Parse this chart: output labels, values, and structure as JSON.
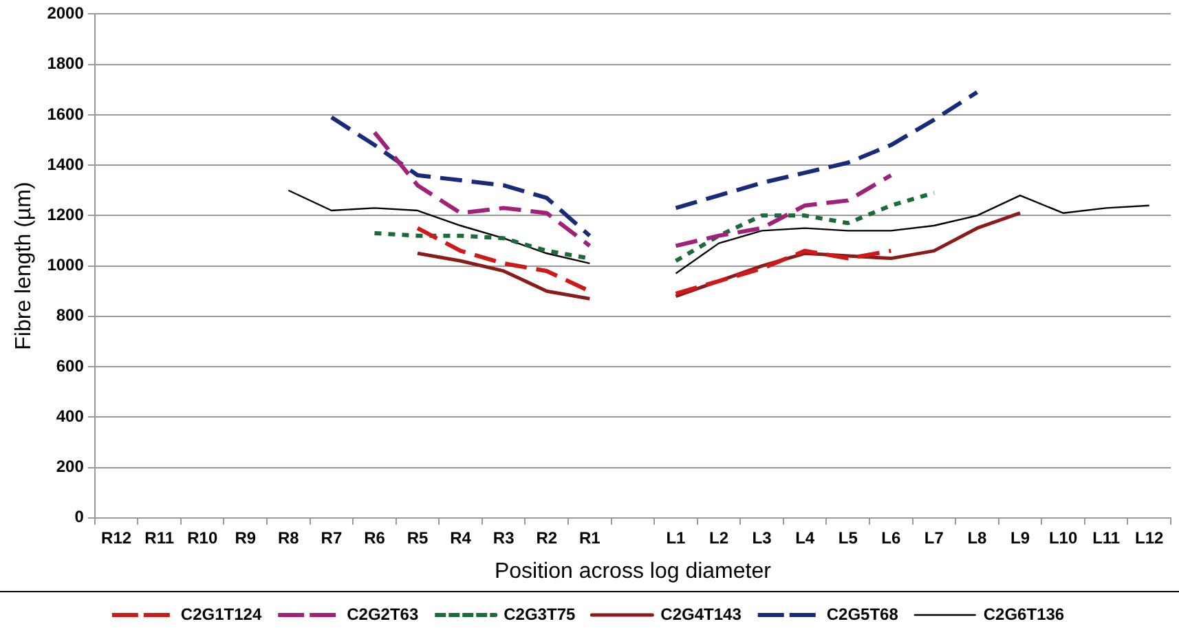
{
  "chart_data": {
    "type": "line",
    "xlabel": "Position across log diameter",
    "ylabel": "Fibre length (µm)",
    "categories": [
      "R12",
      "R11",
      "R10",
      "R9",
      "R8",
      "R7",
      "R6",
      "R5",
      "R4",
      "R3",
      "R2",
      "R1",
      null,
      "L1",
      "L2",
      "L3",
      "L4",
      "L5",
      "L6",
      "L7",
      "L8",
      "L9",
      "L10",
      "L11",
      "L12"
    ],
    "ylim": [
      0,
      2000
    ],
    "yticks": [
      0,
      200,
      400,
      600,
      800,
      1000,
      1200,
      1400,
      1600,
      1800,
      2000
    ],
    "grid": "y",
    "legend": "bottom",
    "marker": "none",
    "series": [
      {
        "name": "C2G1T124",
        "color": "#d01818",
        "line_style": "dashed",
        "values": [
          null,
          null,
          null,
          null,
          null,
          null,
          null,
          1150,
          1060,
          1010,
          980,
          900,
          null,
          890,
          940,
          990,
          1060,
          1030,
          1060,
          null,
          null,
          null,
          null,
          null,
          null
        ]
      },
      {
        "name": "C2G2T63",
        "color": "#a0207a",
        "line_style": "dashed",
        "values": [
          null,
          null,
          null,
          null,
          null,
          null,
          1530,
          1320,
          1210,
          1230,
          1210,
          1080,
          null,
          1080,
          1120,
          1150,
          1240,
          1260,
          1360,
          null,
          null,
          null,
          null,
          null,
          null
        ]
      },
      {
        "name": "C2G3T75",
        "color": "#1a6a3a",
        "line_style": "dotted",
        "values": [
          null,
          null,
          null,
          null,
          null,
          null,
          1130,
          1120,
          1120,
          1110,
          1060,
          1030,
          null,
          1020,
          1120,
          1200,
          1200,
          1170,
          1240,
          1290,
          null,
          null,
          null,
          null,
          null
        ]
      },
      {
        "name": "C2G4T143",
        "color": "#8b1a1a",
        "line_style": "solid",
        "values": [
          null,
          null,
          null,
          null,
          null,
          null,
          null,
          1050,
          1020,
          980,
          900,
          870,
          null,
          880,
          940,
          1000,
          1050,
          1040,
          1030,
          1060,
          1150,
          1210,
          null,
          null,
          null
        ]
      },
      {
        "name": "C2G5T68",
        "color": "#1a2a7a",
        "line_style": "dashed",
        "values": [
          null,
          null,
          null,
          null,
          null,
          1590,
          1480,
          1360,
          1340,
          1320,
          1270,
          1120,
          null,
          1230,
          1280,
          1330,
          1370,
          1410,
          1480,
          1580,
          1690,
          null,
          null,
          null,
          null
        ]
      },
      {
        "name": "C2G6T136",
        "color": "#000000",
        "line_style": "solid",
        "values": [
          null,
          null,
          null,
          null,
          1300,
          1220,
          1230,
          1220,
          1160,
          1110,
          1050,
          1010,
          null,
          970,
          1090,
          1140,
          1150,
          1140,
          1140,
          1160,
          1200,
          1280,
          1210,
          1230,
          1240
        ]
      }
    ]
  }
}
